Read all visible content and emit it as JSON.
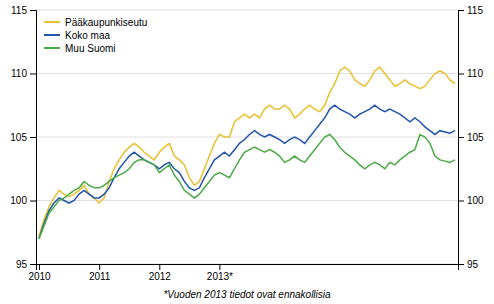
{
  "chart_data": {
    "type": "line",
    "annotations": [
      "*Vuoden 2013 tiedot ovat ennakollisia"
    ],
    "x": [
      2010,
      2010.0833333333,
      2010.1666666667,
      2010.25,
      2010.3333333333,
      2010.4166666667,
      2010.5,
      2010.5833333333,
      2010.6666666667,
      2010.75,
      2010.8333333333,
      2010.9166666667,
      2011,
      2011.0833333333,
      2011.1666666667,
      2011.25,
      2011.3333333333,
      2011.4166666667,
      2011.5,
      2011.5833333333,
      2011.6666666667,
      2011.75,
      2011.8333333333,
      2011.9166666667,
      2012,
      2012.0833333333,
      2012.1666666667,
      2012.25,
      2012.3333333333,
      2012.4166666667,
      2012.5,
      2012.5833333333,
      2012.6666666667,
      2012.75,
      2012.8333333333,
      2012.9166666667,
      2013,
      2013.0833333333,
      2013.1666666667,
      2013.25,
      2013.3333333333,
      2013.4166666667,
      2013.5,
      2013.5833333333,
      2013.6666666667,
      2013.75,
      2013.8333333333,
      2013.9166666667,
      2014,
      2014.0833333333,
      2014.1666666667,
      2014.25,
      2014.3333333333,
      2014.4166666667,
      2014.5,
      2014.5833333333,
      2014.6666666667,
      2014.75,
      2014.8333333333,
      2014.9166666667,
      2015,
      2015.0833333333,
      2015.1666666667,
      2015.25,
      2015.3333333333,
      2015.4166666667,
      2015.5,
      2015.5833333333,
      2015.6666666667,
      2015.75,
      2015.8333333333,
      2015.9166666667,
      2016,
      2016.0833333333,
      2016.1666666667,
      2016.25,
      2016.3333333333,
      2016.4166666667,
      2016.5,
      2016.5833333333,
      2016.6666666667,
      2016.75,
      2016.8333333333,
      2016.9166666667
    ],
    "series": [
      {
        "name": "Pääkaupunkiseutu",
        "color": "#e8c030",
        "values": [
          97.2,
          98.5,
          99.5,
          100.2,
          100.8,
          100.5,
          100.3,
          100.5,
          100.8,
          101.2,
          100.5,
          100.2,
          99.8,
          100.2,
          101.5,
          102.5,
          103.2,
          103.8,
          104.2,
          104.5,
          104.2,
          103.8,
          103.5,
          103.2,
          103.8,
          104.2,
          104.5,
          103.5,
          103.2,
          102.8,
          101.8,
          101.2,
          101.5,
          102.5,
          103.5,
          104.5,
          105.2,
          105.0,
          105.0,
          106.2,
          106.5,
          106.8,
          106.5,
          106.8,
          106.5,
          107.2,
          107.5,
          107.2,
          107.2,
          107.5,
          107.2,
          106.5,
          106.8,
          107.2,
          107.5,
          107.2,
          107.0,
          107.5,
          108.5,
          109.2,
          110.2,
          110.5,
          110.2,
          109.5,
          109.2,
          109.0,
          109.5,
          110.2,
          110.5,
          110.0,
          109.5,
          109.0,
          109.2,
          109.5,
          109.2,
          109.0,
          108.8,
          109.0,
          109.5,
          110.0,
          110.2,
          110.0,
          109.5,
          109.2
        ]
      },
      {
        "name": "Koko maa",
        "color": "#2255aa",
        "values": [
          97.0,
          98.2,
          99.2,
          99.8,
          100.2,
          100.0,
          99.8,
          100.0,
          100.5,
          100.8,
          100.5,
          100.2,
          100.2,
          100.5,
          101.0,
          101.8,
          102.5,
          103.0,
          103.5,
          103.8,
          103.5,
          103.2,
          103.0,
          102.8,
          102.5,
          102.8,
          103.0,
          102.5,
          102.2,
          101.5,
          101.0,
          100.8,
          101.0,
          101.8,
          102.5,
          103.2,
          103.5,
          103.8,
          103.5,
          104.0,
          104.5,
          104.8,
          105.2,
          105.5,
          105.2,
          105.0,
          105.2,
          105.0,
          104.8,
          104.5,
          104.8,
          105.0,
          104.8,
          104.5,
          105.0,
          105.5,
          106.0,
          106.5,
          107.2,
          107.5,
          107.2,
          107.0,
          106.8,
          106.5,
          106.8,
          107.0,
          107.2,
          107.5,
          107.2,
          107.0,
          107.2,
          107.0,
          106.8,
          106.5,
          106.2,
          106.5,
          106.2,
          105.8,
          105.5,
          105.2,
          105.5,
          105.4,
          105.3,
          105.5
        ]
      },
      {
        "name": "Muu Suomi",
        "color": "#4aaa44",
        "values": [
          97.0,
          98.0,
          99.0,
          99.5,
          100.0,
          100.2,
          100.5,
          100.8,
          101.0,
          101.5,
          101.2,
          101.0,
          101.0,
          101.2,
          101.5,
          101.8,
          102.0,
          102.2,
          102.5,
          103.0,
          103.2,
          103.2,
          103.0,
          102.8,
          102.2,
          102.5,
          102.8,
          102.0,
          101.5,
          100.8,
          100.5,
          100.2,
          100.5,
          101.0,
          101.5,
          102.0,
          102.2,
          102.0,
          101.8,
          102.5,
          103.2,
          103.8,
          104.0,
          104.2,
          104.0,
          103.8,
          104.0,
          103.8,
          103.5,
          103.0,
          103.2,
          103.5,
          103.2,
          103.0,
          103.5,
          104.0,
          104.5,
          105.0,
          105.2,
          104.8,
          104.2,
          103.8,
          103.5,
          103.2,
          102.8,
          102.5,
          102.8,
          103.0,
          102.8,
          102.5,
          103.0,
          102.8,
          103.2,
          103.5,
          103.8,
          104.0,
          105.2,
          105.0,
          104.5,
          103.5,
          103.2,
          103.1,
          103.0,
          103.2
        ]
      }
    ],
    "xlim": [
      2009.95,
      2016.9666666667
    ],
    "xticks": [
      2010,
      2011,
      2012,
      {
        "value": 2013,
        "label": "2013*"
      }
    ],
    "ylim": [
      95,
      115
    ],
    "yticks": [
      95,
      100,
      105,
      110,
      115
    ],
    "y2lim": [
      95,
      115
    ],
    "y2ticks": [
      95,
      100,
      105,
      110,
      115
    ],
    "grid": true,
    "legend": "top-left"
  }
}
